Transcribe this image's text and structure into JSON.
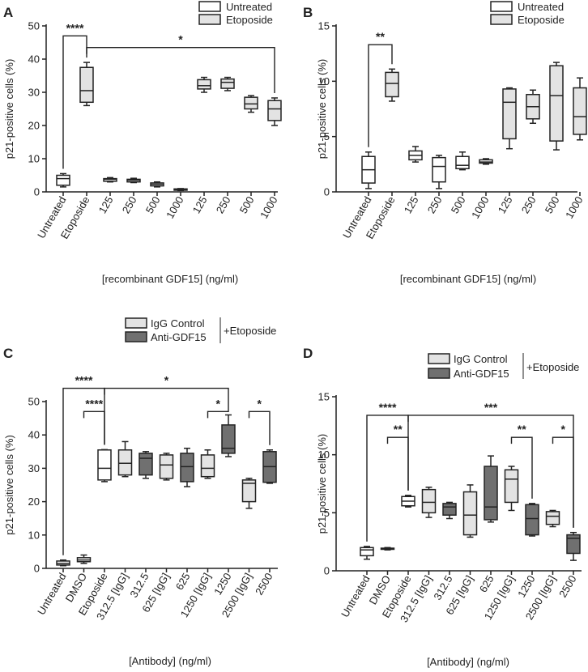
{
  "colors": {
    "untreated": "#ffffff",
    "etoposide": "#e3e3e3",
    "igg": "#e3e3e3",
    "anti": "#707070",
    "stroke": "#222222"
  },
  "legend_ab": {
    "untreated": "Untreated",
    "etoposide": "Etoposide"
  },
  "legend_cd": {
    "igg": "IgG Control",
    "anti": "Anti-GDF15",
    "group": "+Etoposide"
  },
  "chart_data": [
    {
      "panel": "A",
      "type": "box",
      "ylabel": "p21-positive cells (%)",
      "xlabel": "[recombinant GDF15] (ng/ml)",
      "ylim": [
        0,
        50
      ],
      "yticks": [
        0,
        10,
        20,
        30,
        40,
        50
      ],
      "categories": [
        "Untreated",
        "Etoposide",
        "125",
        "250",
        "500",
        "1000",
        "125",
        "250",
        "500",
        "1000"
      ],
      "groups": [
        "untreated",
        "etoposide",
        "untreated",
        "untreated",
        "untreated",
        "untreated",
        "etoposide",
        "etoposide",
        "etoposide",
        "etoposide"
      ],
      "boxes": [
        [
          1.5,
          2,
          4,
          5,
          5.5
        ],
        [
          26,
          27,
          30.5,
          37.5,
          39
        ],
        [
          3,
          3.2,
          3.8,
          4,
          4.3
        ],
        [
          2.8,
          3,
          3.5,
          3.8,
          4.1
        ],
        [
          1.5,
          1.8,
          2.3,
          2.7,
          3
        ],
        [
          0.4,
          0.5,
          0.7,
          0.9,
          1
        ],
        [
          30,
          31,
          32,
          33.8,
          34.5
        ],
        [
          30.5,
          31.2,
          33,
          34,
          34.5
        ],
        [
          24,
          25,
          26.5,
          28.5,
          29
        ],
        [
          20,
          21.5,
          25,
          27.5,
          28.3
        ]
      ],
      "significance": [
        {
          "from": 0,
          "to": 1,
          "label": "****",
          "level": 47
        },
        {
          "from": 1,
          "to": 9,
          "label": "*",
          "level": 43.5
        }
      ]
    },
    {
      "panel": "B",
      "type": "box",
      "ylabel": "p21-positive cells (%)",
      "xlabel": "[recombinant GDF15] (ng/ml)",
      "ylim": [
        0,
        15
      ],
      "yticks": [
        0,
        5,
        10,
        15
      ],
      "categories": [
        "Untreated",
        "Etoposide",
        "125",
        "250",
        "500",
        "1000",
        "125",
        "250",
        "500",
        "1000"
      ],
      "groups": [
        "untreated",
        "etoposide",
        "untreated",
        "untreated",
        "untreated",
        "untreated",
        "etoposide",
        "etoposide",
        "etoposide",
        "etoposide"
      ],
      "boxes": [
        [
          0.3,
          0.8,
          2,
          3.2,
          3.6
        ],
        [
          8.2,
          8.6,
          9.8,
          10.8,
          11.1
        ],
        [
          2.7,
          2.9,
          3.3,
          3.7,
          4.1
        ],
        [
          0.3,
          0.9,
          2.3,
          3.1,
          3.3
        ],
        [
          2,
          2.1,
          2.4,
          3.2,
          3.6
        ],
        [
          2.5,
          2.6,
          2.7,
          2.9,
          3
        ],
        [
          3.9,
          4.8,
          8.1,
          9.3,
          9.4
        ],
        [
          6.2,
          6.6,
          7.7,
          8.8,
          9.2
        ],
        [
          3.8,
          4.6,
          8.7,
          11.4,
          11.7
        ],
        [
          4.7,
          5.2,
          6.8,
          9.4,
          10.3
        ]
      ],
      "significance": [
        {
          "from": 0,
          "to": 1,
          "label": "**",
          "level": 13.3
        }
      ]
    },
    {
      "panel": "C",
      "type": "box",
      "ylabel": "p21-positive cells (%)",
      "xlabel": "[Antibody] (ng/ml)",
      "ylim": [
        0,
        50
      ],
      "yticks": [
        0,
        10,
        20,
        30,
        40,
        50
      ],
      "categories": [
        "Untreated",
        "DMSO",
        "Etoposide",
        "312.5 [IgG]",
        "312.5",
        "625 [IgG]",
        "625",
        "1250 [IgG]",
        "1250",
        "2500 [IgG]",
        "2500"
      ],
      "groups": [
        "untreated",
        "untreated",
        "untreated",
        "igg",
        "anti",
        "igg",
        "anti",
        "igg",
        "anti",
        "igg",
        "anti"
      ],
      "boxes": [
        [
          0.8,
          1,
          1.5,
          2.2,
          2.5
        ],
        [
          1.5,
          2,
          2.5,
          3.2,
          4
        ],
        [
          26,
          26.5,
          30,
          35.5,
          35.6
        ],
        [
          27.5,
          28,
          31.5,
          35.5,
          38
        ],
        [
          27,
          28,
          33,
          34.5,
          35
        ],
        [
          26.5,
          27,
          31,
          34,
          34.5
        ],
        [
          24.5,
          26,
          30.5,
          34.5,
          36
        ],
        [
          27,
          27.5,
          30,
          34,
          35.5
        ],
        [
          33.5,
          34.5,
          36,
          43,
          46
        ],
        [
          18,
          20,
          25.5,
          26.5,
          27
        ],
        [
          25.5,
          25.8,
          30.5,
          35,
          35.5
        ]
      ],
      "significance": [
        {
          "from": 0,
          "to": 2,
          "label": "****",
          "level": 54
        },
        {
          "from": 1,
          "to": 2,
          "label": "****",
          "level": 47
        },
        {
          "from": 2,
          "to": 8,
          "label": "*",
          "level": 54
        },
        {
          "from": 7,
          "to": 8,
          "label": "*",
          "level": 47
        },
        {
          "from": 9,
          "to": 10,
          "label": "*",
          "level": 47
        }
      ]
    },
    {
      "panel": "D",
      "type": "box",
      "ylabel": "p21-positive cells (%)",
      "xlabel": "[Antibody] (ng/ml)",
      "ylim": [
        0,
        15
      ],
      "yticks": [
        0,
        5,
        10,
        15
      ],
      "categories": [
        "Untreated",
        "DMSO",
        "Etoposide",
        "312.5 [IgG]",
        "312.5",
        "625 [IgG]",
        "625",
        "1250 [IgG]",
        "1250",
        "2500 [IgG]",
        "2500"
      ],
      "groups": [
        "untreated",
        "untreated",
        "untreated",
        "igg",
        "anti",
        "igg",
        "anti",
        "igg",
        "anti",
        "igg",
        "anti"
      ],
      "boxes": [
        [
          1,
          1.3,
          1.8,
          2,
          2.1
        ],
        [
          1.8,
          1.85,
          1.9,
          1.95,
          2
        ],
        [
          5.5,
          5.6,
          6,
          6.4,
          6.5
        ],
        [
          4.6,
          5,
          5.9,
          7,
          7.2
        ],
        [
          4.5,
          4.8,
          5.5,
          5.8,
          5.9
        ],
        [
          2.9,
          3.1,
          4.8,
          6.8,
          7.4
        ],
        [
          4.2,
          4.4,
          5.5,
          9,
          9.9
        ],
        [
          5.2,
          5.9,
          7.9,
          8.7,
          9
        ],
        [
          3,
          3.1,
          4.5,
          5.7,
          5.8
        ],
        [
          3.8,
          4,
          4.7,
          5.1,
          5.2
        ],
        [
          0.9,
          1.5,
          2.8,
          3.1,
          3.3
        ]
      ],
      "significance": [
        {
          "from": 0,
          "to": 2,
          "label": "****",
          "level": 13.4
        },
        {
          "from": 1,
          "to": 2,
          "label": "**",
          "level": 11.5
        },
        {
          "from": 2,
          "to": 10,
          "label": "***",
          "level": 13.4
        },
        {
          "from": 7,
          "to": 8,
          "label": "**",
          "level": 11.5
        },
        {
          "from": 9,
          "to": 10,
          "label": "*",
          "level": 11.5
        }
      ]
    }
  ]
}
